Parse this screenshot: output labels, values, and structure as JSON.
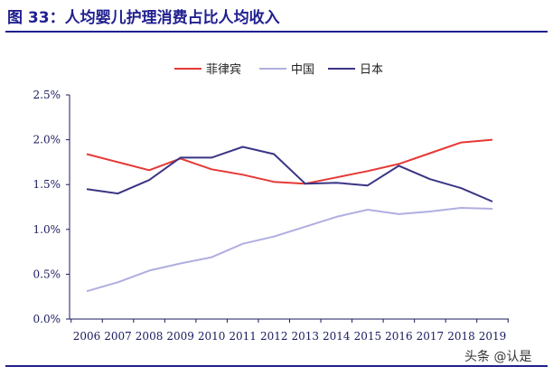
{
  "header": {
    "title": "图 33：人均婴儿护理消费占比人均收入"
  },
  "watermark": "头条 @认是",
  "colors": {
    "title": "#1f1f8f",
    "axis": "#1a1a5e",
    "philippines": "#e53935",
    "china": "#b0aee0",
    "japan": "#3a3585"
  },
  "chart_data": {
    "type": "line",
    "title": "",
    "xlabel": "",
    "ylabel": "",
    "categories": [
      "2006",
      "2007",
      "2008",
      "2009",
      "2010",
      "2011",
      "2012",
      "2013",
      "2014",
      "2015",
      "2016",
      "2017",
      "2018",
      "2019"
    ],
    "ylim": [
      0,
      2.5
    ],
    "yticks": [
      "0.0%",
      "0.5%",
      "1.0%",
      "1.5%",
      "2.0%",
      "2.5%"
    ],
    "ytick_values": [
      0,
      0.5,
      1.0,
      1.5,
      2.0,
      2.5
    ],
    "grid": false,
    "legend_position": "top-center",
    "series": [
      {
        "name": "菲律宾",
        "color": "#e53935",
        "values": [
          1.84,
          1.75,
          1.66,
          1.79,
          1.67,
          1.61,
          1.53,
          1.51,
          1.58,
          1.65,
          1.73,
          1.85,
          1.97,
          2.0
        ]
      },
      {
        "name": "中国",
        "color": "#b0aee0",
        "values": [
          0.31,
          0.41,
          0.54,
          0.62,
          0.69,
          0.84,
          0.92,
          1.03,
          1.14,
          1.22,
          1.17,
          1.2,
          1.24,
          1.23
        ]
      },
      {
        "name": "日本",
        "color": "#3a3585",
        "values": [
          1.45,
          1.4,
          1.55,
          1.8,
          1.8,
          1.92,
          1.84,
          1.51,
          1.52,
          1.49,
          1.71,
          1.56,
          1.46,
          1.31
        ]
      }
    ]
  }
}
